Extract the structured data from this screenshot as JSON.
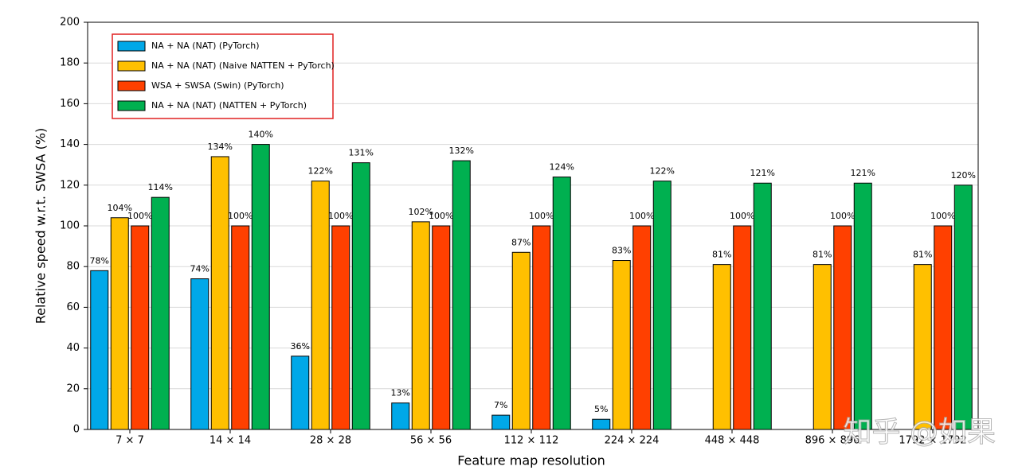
{
  "chart_data": {
    "type": "bar",
    "xlabel": "Feature map resolution",
    "ylabel": "Relative speed w.r.t. SWSA (%)",
    "categories": [
      "7 × 7",
      "14 × 14",
      "28 × 28",
      "56 × 56",
      "112 × 112",
      "224 × 224",
      "448 × 448",
      "896 × 896",
      "1792 × 1792"
    ],
    "series": [
      {
        "name": "NA + NA (NAT) (PyTorch)",
        "color": "#00a8e8",
        "values": [
          78,
          74,
          36,
          13,
          7,
          5,
          null,
          null,
          null
        ],
        "value_labels": [
          "78%",
          "74%",
          "36%",
          "13%",
          "7%",
          "5%",
          null,
          null,
          null
        ]
      },
      {
        "name": "NA + NA (NAT) (Naive NATTEN + PyTorch)",
        "color": "#ffc000",
        "values": [
          104,
          134,
          122,
          102,
          87,
          83,
          81,
          81,
          81
        ],
        "value_labels": [
          "104%",
          "134%",
          "122%",
          "102%",
          "87%",
          "83%",
          "81%",
          "81%",
          "81%"
        ]
      },
      {
        "name": "WSA + SWSA (Swin) (PyTorch)",
        "color": "#ff4000",
        "values": [
          100,
          100,
          100,
          100,
          100,
          100,
          100,
          100,
          100
        ],
        "value_labels": [
          "100%",
          "100%",
          "100%",
          "100%",
          "100%",
          "100%",
          "100%",
          "100%",
          "100%"
        ]
      },
      {
        "name": "NA + NA (NAT) (NATTEN + PyTorch)",
        "color": "#00b050",
        "values": [
          114,
          140,
          131,
          132,
          124,
          122,
          121,
          121,
          120
        ],
        "value_labels": [
          "114%",
          "140%",
          "131%",
          "132%",
          "124%",
          "122%",
          "121%",
          "121%",
          "120%"
        ]
      }
    ],
    "ylim": [
      0,
      200
    ],
    "yticks": [
      0,
      20,
      40,
      60,
      80,
      100,
      120,
      140,
      160,
      180,
      200
    ],
    "grid": true,
    "legend": "upper left",
    "watermark": "知乎 @如果"
  }
}
